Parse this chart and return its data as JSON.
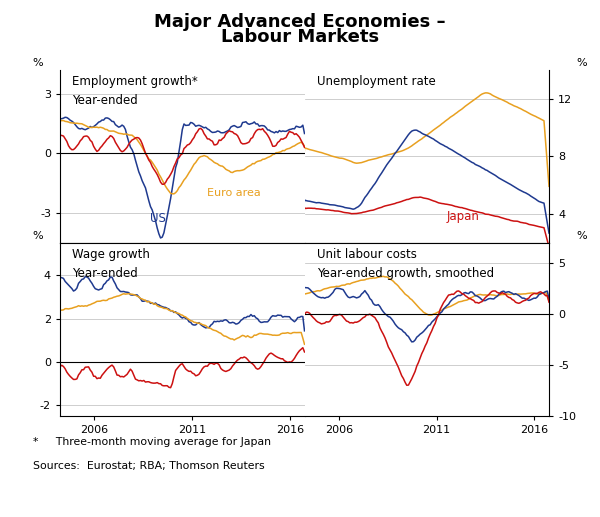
{
  "title_line1": "Major Advanced Economies –",
  "title_line2": "Labour Markets",
  "colors": {
    "US": "#1f3a8f",
    "euro": "#e8a020",
    "japan": "#cc1111"
  },
  "footnote": "*     Three-month moving average for Japan",
  "sources": "Sources:  Eurostat; RBA; Thomson Reuters"
}
